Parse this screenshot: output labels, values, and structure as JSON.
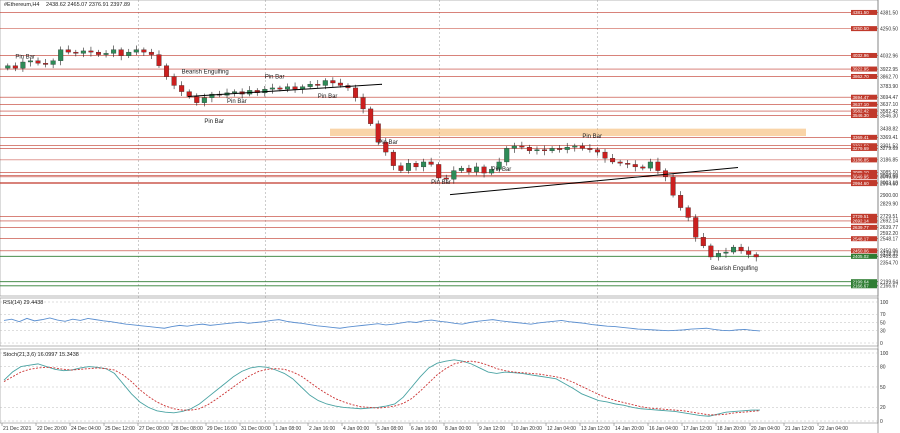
{
  "header": {
    "symbol_label": "#Ethereum,H4",
    "ohlc": "2438.62 2465.07 2376.91 2397.89"
  },
  "indicators": {
    "rsi_label": "RSI(14) 29.4438",
    "stoch_label": "Stoch(21,3,6) 16.0997 15.3438"
  },
  "colors": {
    "bull": "#2e8b57",
    "bear": "#cc1f1f",
    "resistance": "#c0392b",
    "support": "#2e7d32",
    "zone": "#f4b060",
    "rsi": "#5b8fd0",
    "stoch_main": "#4aa3a3",
    "stoch_signal": "#cc3333",
    "trend": "#000000"
  },
  "chart_data": [
    {
      "type": "candlestick",
      "title": "#Ethereum,H4",
      "ylim": [
        2100,
        4450
      ],
      "price_scale_labels": [
        "4381.50",
        "4250.50",
        "4032.96",
        "3922.95",
        "3862.70",
        "3783.90",
        "3694.47",
        "3637.10",
        "3582.42",
        "3546.30",
        "3438.82",
        "3369.41",
        "3301.52",
        "3279.69",
        "3186.85",
        "3085.10",
        "3060.59",
        "3049.95",
        "3003.18",
        "2994.60",
        "2900.00",
        "2829.90",
        "2729.51",
        "2692.14",
        "2639.77",
        "2592.20",
        "2548.17",
        "2450.06",
        "2428.32",
        "2405.02",
        "2354.70",
        "2199.64",
        "2166.67"
      ],
      "x_labels": [
        "21 Dec 2021",
        "22 Dec 20:00",
        "24 Dec 04:00",
        "25 Dec 12:00",
        "27 Dec 00:00",
        "28 Dec 08:00",
        "29 Dec 16:00",
        "31 Dec 00:00",
        "1 Jan 08:00",
        "2 Jan 16:00",
        "4 Jan 00:00",
        "5 Jan 08:00",
        "6 Jan 16:00",
        "8 Jan 00:00",
        "9 Jan 12:00",
        "10 Jan 20:00",
        "12 Jan 04:00",
        "13 Jan 12:00",
        "14 Jan 20:00",
        "16 Jan 04:00",
        "17 Jan 12:00",
        "18 Jan 20:00",
        "20 Jan 04:00",
        "21 Jan 12:00",
        "22 Jan 04:00"
      ],
      "closes": [
        3950,
        3930,
        3980,
        3990,
        3970,
        3960,
        3990,
        4080,
        4060,
        4050,
        4070,
        4060,
        4040,
        4050,
        4080,
        4030,
        4060,
        4080,
        4060,
        4040,
        3950,
        3860,
        3790,
        3740,
        3700,
        3650,
        3690,
        3720,
        3710,
        3730,
        3740,
        3720,
        3750,
        3730,
        3760,
        3770,
        3760,
        3780,
        3760,
        3780,
        3800,
        3790,
        3830,
        3810,
        3790,
        3770,
        3690,
        3600,
        3480,
        3330,
        3250,
        3140,
        3100,
        3160,
        3130,
        3170,
        3150,
        3040,
        3030,
        3100,
        3120,
        3090,
        3130,
        3080,
        3110,
        3170,
        3280,
        3300,
        3290,
        3260,
        3270,
        3260,
        3280,
        3270,
        3290,
        3300,
        3280,
        3270,
        3250,
        3200,
        3170,
        3160,
        3150,
        3130,
        3120,
        3170,
        3100,
        3050,
        2900,
        2800,
        2720,
        2560,
        2490,
        2400,
        2430,
        2440,
        2480,
        2450,
        2420,
        2400
      ],
      "resistance_levels": [
        4381.5,
        4250.5,
        4032.96,
        3922.95,
        3862.7,
        3694.47,
        3637.1,
        3582.42,
        3546.3,
        3369.41,
        3301.52,
        3279.69,
        3186.85,
        3085.1,
        3060.59,
        3049.95,
        3003.18,
        2994.6,
        2729.51,
        2692.14,
        2639.77,
        2548.17,
        2450.06
      ],
      "support_levels": [
        2405.02,
        2199.64,
        2166.67
      ],
      "supply_zone": [
        3380,
        3440
      ],
      "patterns": [
        {
          "label": "Pin Bar"
        },
        {
          "label": "Bearish Engulfing"
        },
        {
          "label": "Pin Bar"
        },
        {
          "label": "Pin Bar"
        },
        {
          "label": "Pin Bar"
        },
        {
          "label": "Pin Bar"
        },
        {
          "label": "Pin Bar"
        },
        {
          "label": "Pin Bar"
        },
        {
          "label": "Pin Bar"
        },
        {
          "label": "Pin Bar"
        },
        {
          "label": "Bearish Engulfing"
        }
      ]
    },
    {
      "type": "line",
      "title": "RSI(14) 29.4438",
      "ylim": [
        0,
        100
      ],
      "y_ticks": [
        100,
        70,
        50,
        30,
        0
      ],
      "y_tick_labels": [
        "100",
        "70",
        "50",
        "30",
        "0"
      ],
      "values": [
        55,
        58,
        52,
        60,
        54,
        57,
        61,
        56,
        53,
        58,
        55,
        60,
        57,
        54,
        52,
        49,
        46,
        44,
        42,
        40,
        38,
        36,
        40,
        43,
        41,
        44,
        46,
        43,
        45,
        47,
        49,
        51,
        48,
        50,
        52,
        55,
        57,
        53,
        50,
        48,
        45,
        42,
        40,
        38,
        36,
        39,
        41,
        43,
        45,
        47,
        44,
        46,
        49,
        52,
        50,
        54,
        56,
        53,
        51,
        48,
        46,
        50,
        53,
        55,
        57,
        54,
        52,
        50,
        48,
        46,
        49,
        51,
        53,
        55,
        52,
        50,
        48,
        45,
        43,
        41,
        40,
        38,
        36,
        34,
        33,
        32,
        31,
        30,
        31,
        32,
        34,
        35,
        36,
        33,
        31,
        30,
        32,
        33,
        31,
        29.4
      ]
    },
    {
      "type": "line",
      "title": "Stoch(21,3,6) 16.0997 15.3438",
      "ylim": [
        0,
        100
      ],
      "y_ticks": [
        100,
        80,
        50,
        20,
        0
      ],
      "y_tick_labels": [
        "100",
        "80",
        "50",
        "20",
        "0"
      ],
      "series": [
        {
          "values": [
            60,
            72,
            80,
            82,
            84,
            80,
            76,
            74,
            75,
            78,
            80,
            79,
            77,
            70,
            55,
            40,
            28,
            20,
            15,
            13,
            12,
            14,
            18,
            25,
            35,
            45,
            55,
            65,
            73,
            78,
            80,
            79,
            75,
            70,
            62,
            50,
            38,
            30,
            25,
            22,
            20,
            19,
            18,
            19,
            20,
            22,
            25,
            35,
            50,
            65,
            78,
            85,
            88,
            90,
            88,
            84,
            78,
            72,
            70,
            72,
            71,
            70,
            68,
            66,
            64,
            62,
            55,
            48,
            40,
            35,
            30,
            28,
            25,
            23,
            20,
            18,
            17,
            16,
            15,
            14,
            12,
            10,
            8,
            7,
            10,
            13,
            14,
            15,
            16,
            16.1
          ]
        },
        {
          "values": [
            58,
            65,
            72,
            76,
            78,
            79,
            78,
            76,
            75,
            76,
            77,
            78,
            77,
            75,
            68,
            58,
            46,
            36,
            28,
            22,
            18,
            16,
            16,
            18,
            24,
            32,
            41,
            50,
            59,
            67,
            73,
            76,
            77,
            76,
            72,
            66,
            57,
            48,
            40,
            33,
            28,
            24,
            21,
            20,
            19,
            20,
            22,
            26,
            33,
            44,
            56,
            68,
            77,
            84,
            87,
            88,
            86,
            82,
            77,
            74,
            72,
            71,
            70,
            69,
            67,
            65,
            62,
            57,
            51,
            45,
            39,
            34,
            30,
            27,
            24,
            21,
            19,
            18,
            17,
            16,
            15,
            13,
            11,
            9,
            9,
            10,
            12,
            13,
            14,
            15.3
          ]
        }
      ]
    }
  ]
}
